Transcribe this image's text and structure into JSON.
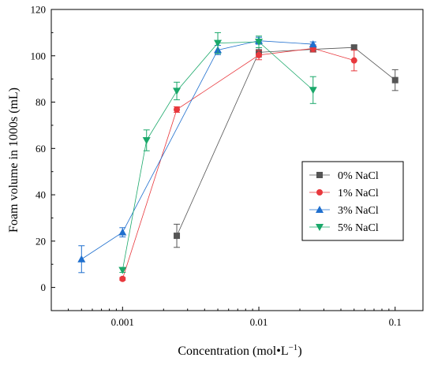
{
  "chart_data": {
    "type": "line",
    "xlabel": "Concentration (mol•L",
    "xlabel_sup": "−1",
    "xlabel_close": ")",
    "ylabel": "Foam volume in 1000s (mL)",
    "xscale": "log",
    "xlim": [
      0.0003,
      0.16
    ],
    "ylim": [
      -10,
      120
    ],
    "x_ticks": [
      {
        "value": 0.001,
        "label": "0.001"
      },
      {
        "value": 0.01,
        "label": "0.01"
      },
      {
        "value": 0.1,
        "label": "0.1"
      }
    ],
    "y_ticks": [
      {
        "value": 0,
        "label": "0"
      },
      {
        "value": 20,
        "label": "20"
      },
      {
        "value": 40,
        "label": "40"
      },
      {
        "value": 60,
        "label": "60"
      },
      {
        "value": 80,
        "label": "80"
      },
      {
        "value": 100,
        "label": "100"
      },
      {
        "value": 120,
        "label": "120"
      }
    ],
    "legend_position": "right",
    "series": [
      {
        "name": "0% NaCl",
        "color": "#555555",
        "marker": "square",
        "points": [
          {
            "x": 0.0025,
            "y": 22.3,
            "err": 5
          },
          {
            "x": 0.01,
            "y": 101.5,
            "err": 2
          },
          {
            "x": 0.025,
            "y": 102.8,
            "err": 1.2
          },
          {
            "x": 0.05,
            "y": 103.6,
            "err": 0.8
          },
          {
            "x": 0.1,
            "y": 89.5,
            "err": 4.5
          }
        ]
      },
      {
        "name": "1% NaCl",
        "color": "#e8383d",
        "marker": "circle",
        "points": [
          {
            "x": 0.001,
            "y": 3.7,
            "err": 0.6
          },
          {
            "x": 0.0025,
            "y": 76.8,
            "err": 1.2
          },
          {
            "x": 0.01,
            "y": 100.3,
            "err": 2
          },
          {
            "x": 0.025,
            "y": 103.2,
            "err": 1.5
          },
          {
            "x": 0.05,
            "y": 98.0,
            "err": 4.5
          }
        ]
      },
      {
        "name": "3% NaCl",
        "color": "#1f6fce",
        "marker": "triangle-up",
        "points": [
          {
            "x": 0.0005,
            "y": 12.2,
            "err": 5.8
          },
          {
            "x": 0.001,
            "y": 23.8,
            "err": 2
          },
          {
            "x": 0.005,
            "y": 102.5,
            "err": 2
          },
          {
            "x": 0.01,
            "y": 106.5,
            "err": 1.5
          },
          {
            "x": 0.025,
            "y": 105.0,
            "err": 1
          }
        ]
      },
      {
        "name": "5% NaCl",
        "color": "#1aa86a",
        "marker": "triangle-down",
        "points": [
          {
            "x": 0.001,
            "y": 7.5,
            "err": 1
          },
          {
            "x": 0.0015,
            "y": 63.5,
            "err": 4.5
          },
          {
            "x": 0.0025,
            "y": 84.8,
            "err": 3.8
          },
          {
            "x": 0.005,
            "y": 105.5,
            "err": 4.5
          },
          {
            "x": 0.01,
            "y": 106.0,
            "err": 2.5
          },
          {
            "x": 0.025,
            "y": 85.2,
            "err": 5.8
          }
        ]
      }
    ]
  }
}
